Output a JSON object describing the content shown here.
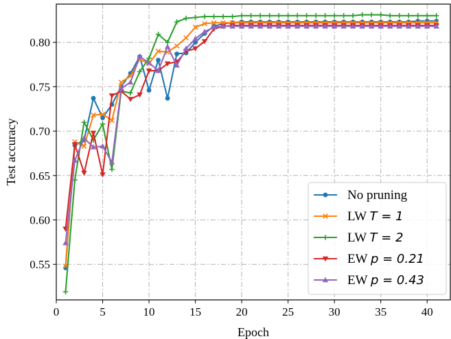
{
  "chart_data": {
    "type": "line",
    "xlabel": "Epoch",
    "ylabel": "Test accuracy",
    "xlim": [
      0,
      42.5
    ],
    "ylim": [
      0.51,
      0.843
    ],
    "xticks": [
      0,
      5,
      10,
      15,
      20,
      25,
      30,
      35,
      40
    ],
    "yticks": [
      0.55,
      0.6,
      0.65,
      0.7,
      0.75,
      0.8
    ],
    "grid": true,
    "legend_position": "lower-right",
    "x": [
      1,
      2,
      3,
      4,
      5,
      6,
      7,
      8,
      9,
      10,
      11,
      12,
      13,
      14,
      15,
      16,
      17,
      18,
      19,
      20,
      21,
      22,
      23,
      24,
      25,
      26,
      27,
      28,
      29,
      30,
      31,
      32,
      33,
      34,
      35,
      36,
      37,
      38,
      39,
      40,
      41
    ],
    "series": [
      {
        "name": "No pruning",
        "label_text": "No pruning",
        "label_math": "",
        "color": "#1f77b4",
        "marker": "circle",
        "values": [
          0.546,
          0.684,
          0.69,
          0.737,
          0.715,
          0.73,
          0.75,
          0.765,
          0.784,
          0.746,
          0.78,
          0.737,
          0.787,
          0.788,
          0.8,
          0.81,
          0.818,
          0.821,
          0.822,
          0.823,
          0.823,
          0.823,
          0.823,
          0.823,
          0.823,
          0.823,
          0.823,
          0.823,
          0.823,
          0.823,
          0.823,
          0.823,
          0.823,
          0.823,
          0.823,
          0.823,
          0.823,
          0.823,
          0.824,
          0.824,
          0.824
        ]
      },
      {
        "name": "LW T = 1",
        "label_text": "LW ",
        "label_math": "T = 1",
        "color": "#ff7f0e",
        "marker": "x",
        "values": [
          0.548,
          0.688,
          0.683,
          0.718,
          0.719,
          0.712,
          0.755,
          0.762,
          0.781,
          0.776,
          0.79,
          0.789,
          0.796,
          0.805,
          0.817,
          0.821,
          0.822,
          0.822,
          0.822,
          0.822,
          0.822,
          0.822,
          0.822,
          0.822,
          0.822,
          0.822,
          0.822,
          0.822,
          0.822,
          0.822,
          0.822,
          0.822,
          0.822,
          0.822,
          0.822,
          0.822,
          0.822,
          0.822,
          0.822,
          0.822,
          0.822
        ]
      },
      {
        "name": "LW T = 2",
        "label_text": "LW ",
        "label_math": "T = 2",
        "color": "#2ca02c",
        "marker": "plus",
        "values": [
          0.519,
          0.645,
          0.71,
          0.69,
          0.708,
          0.657,
          0.745,
          0.743,
          0.767,
          0.782,
          0.809,
          0.8,
          0.823,
          0.827,
          0.828,
          0.829,
          0.829,
          0.829,
          0.829,
          0.83,
          0.83,
          0.83,
          0.83,
          0.83,
          0.83,
          0.83,
          0.83,
          0.83,
          0.83,
          0.83,
          0.83,
          0.83,
          0.831,
          0.831,
          0.831,
          0.83,
          0.83,
          0.83,
          0.83,
          0.83,
          0.83
        ]
      },
      {
        "name": "EW p = 0.21",
        "label_text": "EW ",
        "label_math": "p = 0.21",
        "color": "#d62728",
        "marker": "triangle-down",
        "values": [
          0.59,
          0.685,
          0.653,
          0.698,
          0.651,
          0.74,
          0.745,
          0.736,
          0.741,
          0.768,
          0.768,
          0.776,
          0.778,
          0.79,
          0.793,
          0.801,
          0.815,
          0.818,
          0.819,
          0.819,
          0.819,
          0.819,
          0.819,
          0.819,
          0.819,
          0.819,
          0.819,
          0.819,
          0.819,
          0.819,
          0.819,
          0.819,
          0.819,
          0.819,
          0.819,
          0.819,
          0.819,
          0.819,
          0.819,
          0.819,
          0.819
        ]
      },
      {
        "name": "EW p = 0.43",
        "label_text": "EW ",
        "label_math": "p = 0.43",
        "color": "#9467bd",
        "marker": "triangle-up",
        "values": [
          0.574,
          0.667,
          0.692,
          0.682,
          0.683,
          0.665,
          0.748,
          0.755,
          0.784,
          0.777,
          0.768,
          0.795,
          0.774,
          0.793,
          0.804,
          0.812,
          0.817,
          0.818,
          0.818,
          0.818,
          0.818,
          0.818,
          0.818,
          0.818,
          0.818,
          0.818,
          0.818,
          0.818,
          0.818,
          0.818,
          0.818,
          0.818,
          0.818,
          0.818,
          0.818,
          0.818,
          0.818,
          0.818,
          0.818,
          0.818,
          0.818
        ]
      }
    ]
  }
}
